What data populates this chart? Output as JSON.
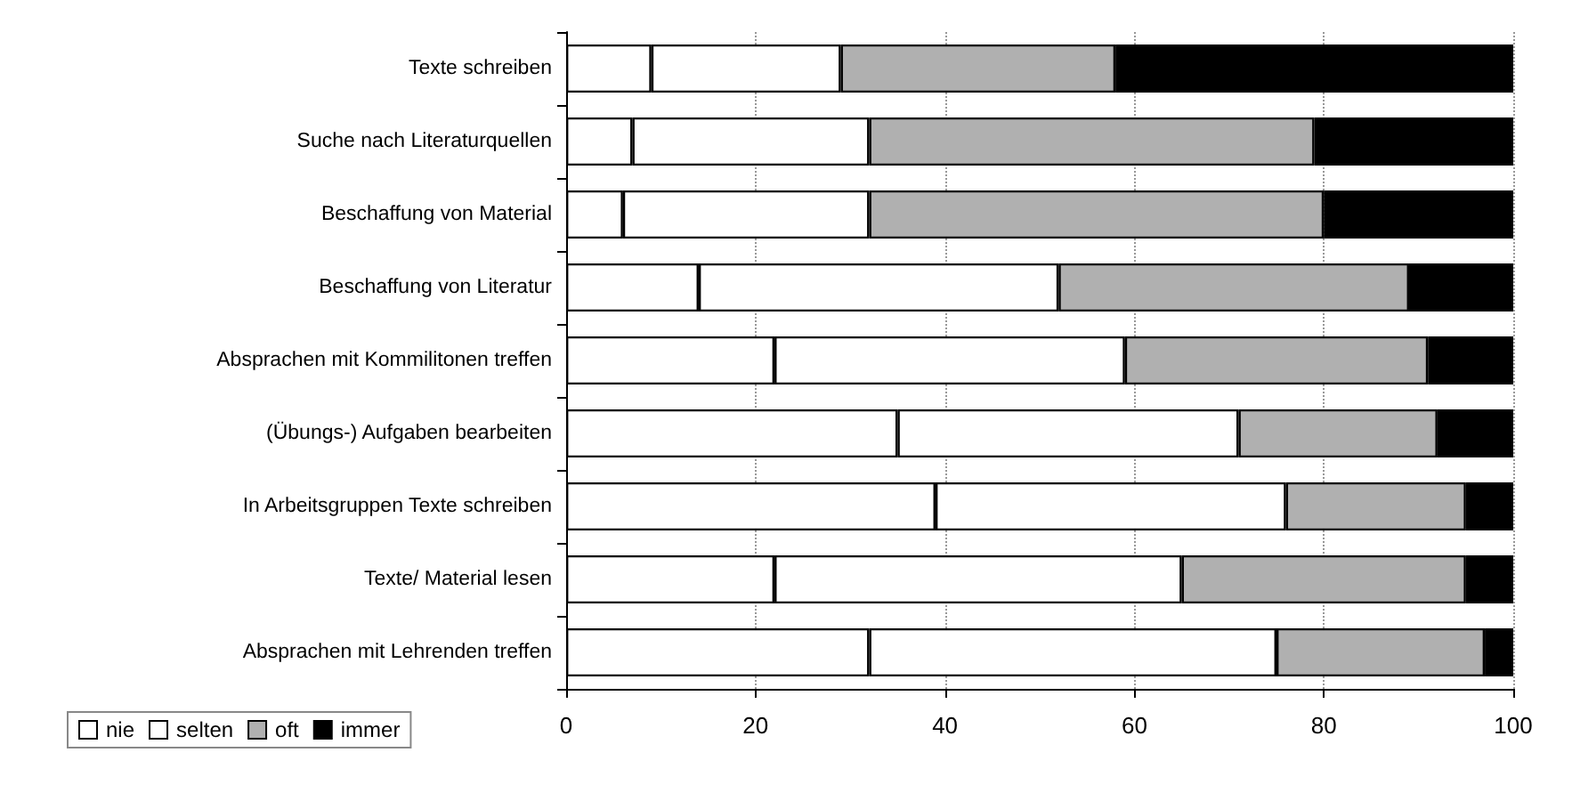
{
  "chart_data": {
    "type": "bar",
    "orientation": "horizontal",
    "stacked": true,
    "categories": [
      "Texte schreiben",
      "Suche nach Literaturquellen",
      "Beschaffung von Material",
      "Beschaffung von Literatur",
      "Absprachen mit Kommilitonen treffen",
      "(Übungs-) Aufgaben bearbeiten",
      "In Arbeitsgruppen Texte schreiben",
      "Texte/ Material lesen",
      "Absprachen mit Lehrenden treffen"
    ],
    "series": [
      {
        "name": "nie",
        "color": "#ffffff",
        "values": [
          9,
          7,
          6,
          14,
          22,
          35,
          39,
          22,
          32
        ]
      },
      {
        "name": "selten",
        "color": "#ffffff",
        "values": [
          20,
          25,
          26,
          38,
          37,
          36,
          37,
          43,
          43
        ]
      },
      {
        "name": "oft",
        "color": "#b0b0b0",
        "values": [
          29,
          47,
          48,
          37,
          32,
          21,
          19,
          30,
          22
        ]
      },
      {
        "name": "immer",
        "color": "#000000",
        "values": [
          42,
          21,
          20,
          11,
          9,
          8,
          5,
          5,
          3
        ]
      }
    ],
    "xlim": [
      0,
      100
    ],
    "xticks": [
      0,
      20,
      40,
      60,
      80,
      100
    ],
    "grid": "x",
    "legend": "bottom left"
  }
}
